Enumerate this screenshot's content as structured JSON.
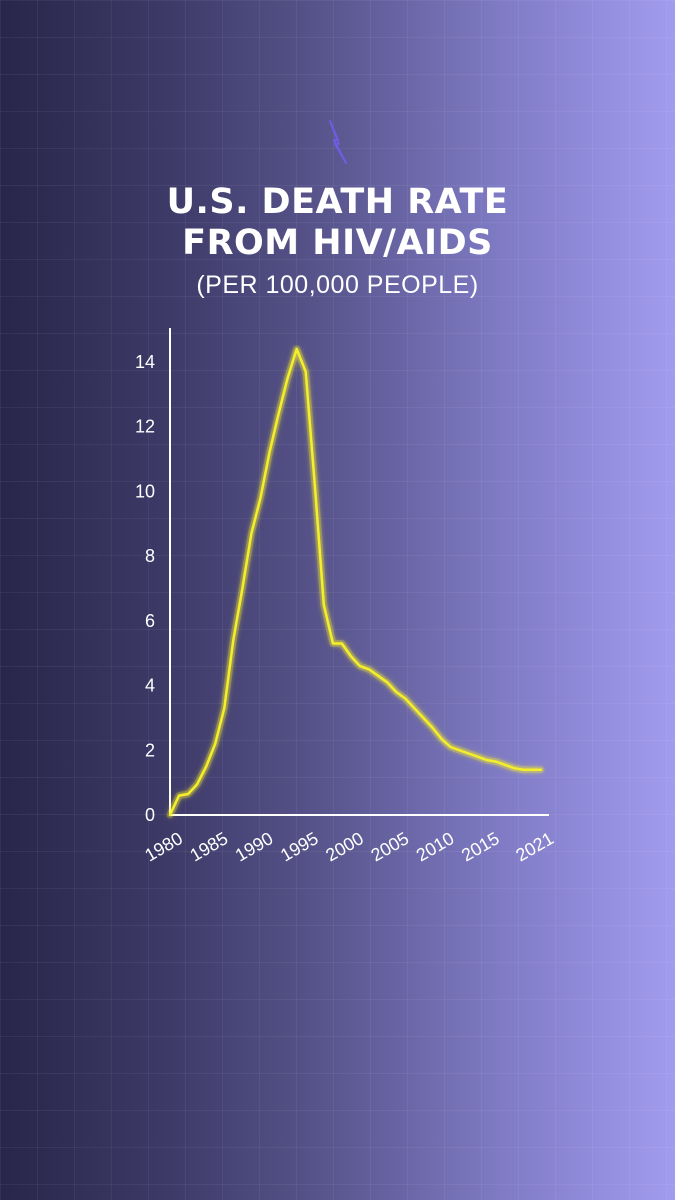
{
  "title_lines": [
    "U.S. DEATH RATE",
    "FROM HIV/AIDS"
  ],
  "subtitle": "(PER 100,000 PEOPLE)",
  "colors": {
    "line": "#f5ee2a",
    "axis": "#ffffff",
    "logo": "#6f5ce0"
  },
  "logo_icon": "lightning-bolt-icon",
  "chart_data": {
    "type": "line",
    "title": "U.S. DEATH RATE FROM HIV/AIDS",
    "subtitle": "(PER 100,000 PEOPLE)",
    "xlabel": "",
    "ylabel": "",
    "xlim": [
      1980,
      2021
    ],
    "ylim": [
      0,
      14.8
    ],
    "grid": false,
    "x_ticks": [
      1980,
      1985,
      1990,
      1995,
      2000,
      2005,
      2010,
      2015,
      2021
    ],
    "x_tick_labels": [
      "1980",
      "1985",
      "1990",
      "1995",
      "2000",
      "2005",
      "2010",
      "2015",
      "2021"
    ],
    "y_ticks": [
      0,
      2,
      4,
      6,
      8,
      10,
      12,
      14
    ],
    "y_tick_labels": [
      "0",
      "2",
      "4",
      "6",
      "8",
      "10",
      "12",
      "14"
    ],
    "series": [
      {
        "x": [
          1980,
          1981,
          1982,
          1983,
          1984,
          1985,
          1986,
          1987,
          1988,
          1989,
          1990,
          1991,
          1992,
          1993,
          1994,
          1995,
          1996,
          1997,
          1998,
          1999,
          2000,
          2001,
          2002,
          2003,
          2004,
          2005,
          2006,
          2007,
          2008,
          2009,
          2010,
          2011,
          2012,
          2013,
          2014,
          2015,
          2016,
          2017,
          2018,
          2019,
          2020,
          2021
        ],
        "values": [
          0,
          0.6,
          0.65,
          0.95,
          1.5,
          2.2,
          3.3,
          5.4,
          7,
          8.7,
          9.8,
          11.2,
          12.4,
          13.5,
          14.4,
          13.7,
          10.2,
          6.5,
          5.3,
          5.3,
          4.9,
          4.6,
          4.5,
          4.3,
          4.1,
          3.8,
          3.6,
          3.3,
          3.0,
          2.7,
          2.35,
          2.1,
          2.0,
          1.9,
          1.8,
          1.7,
          1.65,
          1.55,
          1.45,
          1.4,
          1.4,
          1.4
        ]
      }
    ]
  }
}
